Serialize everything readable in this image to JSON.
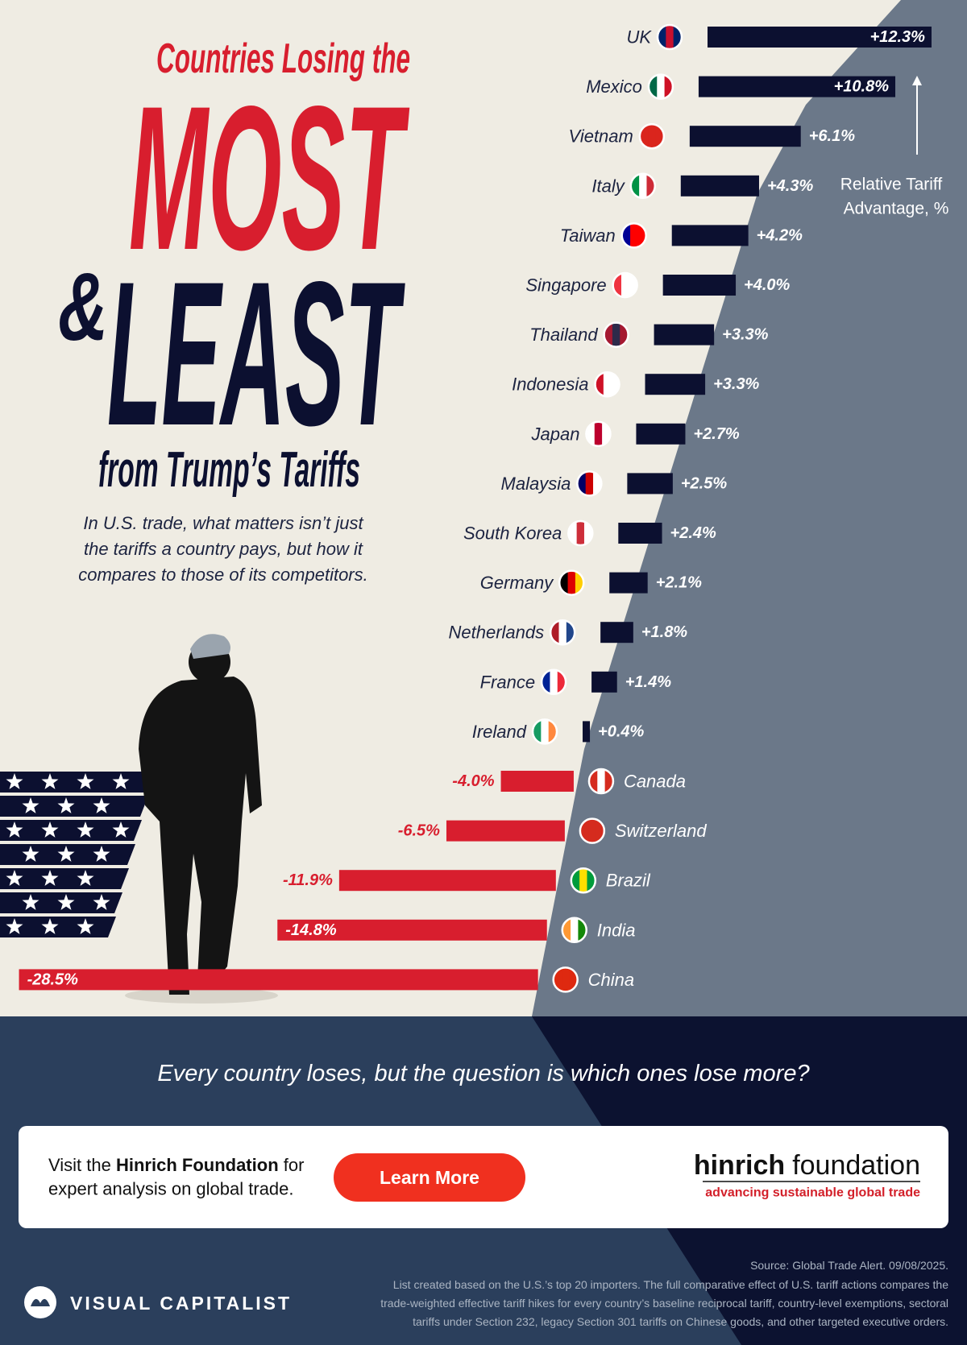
{
  "header": {
    "title_lines": [
      "Countries Losing the",
      "MOST",
      "&",
      "LEAST",
      "from Trump’s Tariffs"
    ],
    "subtitle_lines": [
      "In U.S. trade, what matters isn’t just",
      "the tariffs a country pays, but how it",
      "compares to those of its competitors."
    ]
  },
  "chart_data": {
    "type": "bar",
    "orientation": "horizontal",
    "value_axis_label": [
      "Relative Tariff",
      "Advantage, %"
    ],
    "categories": [
      "UK",
      "Mexico",
      "Vietnam",
      "Italy",
      "Taiwan",
      "Singapore",
      "Thailand",
      "Indonesia",
      "Japan",
      "Malaysia",
      "South Korea",
      "Germany",
      "Netherlands",
      "France",
      "Ireland",
      "Canada",
      "Switzerland",
      "Brazil",
      "India",
      "China"
    ],
    "values": [
      12.3,
      10.8,
      6.1,
      4.3,
      4.2,
      4.0,
      3.3,
      3.3,
      2.7,
      2.5,
      2.4,
      2.1,
      1.8,
      1.4,
      0.4,
      -4.0,
      -6.5,
      -11.9,
      -14.8,
      -28.5
    ],
    "value_labels": [
      "+12.3%",
      "+10.8%",
      "+6.1%",
      "+4.3%",
      "+4.2%",
      "+4.0%",
      "+3.3%",
      "+3.3%",
      "+2.7%",
      "+2.5%",
      "+2.4%",
      "+2.1%",
      "+1.8%",
      "+1.4%",
      "+0.4%",
      "-4.0%",
      "-6.5%",
      "-11.9%",
      "-14.8%",
      "-28.5%"
    ],
    "color": "#0c1030",
    "negative_color": "#d81e2e",
    "flag_colors": [
      [
        "#012169",
        "#c8102e",
        "#012169"
      ],
      [
        "#006847",
        "#ffffff",
        "#ce1126"
      ],
      [
        "#da251d",
        "#da251d",
        "#da251d"
      ],
      [
        "#009246",
        "#ffffff",
        "#ce2b37"
      ],
      [
        "#000095",
        "#fe0000",
        "#fe0000"
      ],
      [
        "#ef3340",
        "#ffffff",
        "#ffffff"
      ],
      [
        "#a51931",
        "#2d2a4a",
        "#a51931"
      ],
      [
        "#ce1126",
        "#ffffff",
        "#ffffff"
      ],
      [
        "#ffffff",
        "#bc002d",
        "#ffffff"
      ],
      [
        "#010066",
        "#cc0001",
        "#ffffff"
      ],
      [
        "#ffffff",
        "#cd2e3a",
        "#ffffff"
      ],
      [
        "#000000",
        "#dd0000",
        "#ffce00"
      ],
      [
        "#ae1c28",
        "#ffffff",
        "#21468b"
      ],
      [
        "#002395",
        "#ffffff",
        "#ed2939"
      ],
      [
        "#169b62",
        "#ffffff",
        "#ff883e"
      ],
      [
        "#d52b1e",
        "#ffffff",
        "#d52b1e"
      ],
      [
        "#d52b1e",
        "#d52b1e",
        "#d52b1e"
      ],
      [
        "#009c3b",
        "#ffdf00",
        "#009c3b"
      ],
      [
        "#ff9933",
        "#ffffff",
        "#138808"
      ],
      [
        "#de2910",
        "#de2910",
        "#de2910"
      ]
    ]
  },
  "footer": {
    "tagline": "Every country loses, but the question is which ones lose more?",
    "cta": {
      "before": "Visit the ",
      "bold": "Hinrich Foundation",
      "after": " for",
      "line2": "expert analysis on global trade.",
      "button": "Learn More"
    },
    "logo": {
      "word1": "hinrich",
      "word2": "foundation",
      "tagline": "advancing sustainable global trade"
    },
    "brand": "VISUAL CAPITALIST",
    "source": "Source: Global Trade Alert. 09/08/2025.",
    "notes": [
      "List created based on the U.S.’s top 20 importers. The full comparative effect of U.S. tariff actions compares the",
      "trade-weighted effective tariff hikes for every country’s baseline reciprocal tariff, country-level exemptions, sectoral",
      "tariffs under Section 232, legacy Section 301 tariffs on Chinese goods, and other targeted executive orders."
    ]
  }
}
